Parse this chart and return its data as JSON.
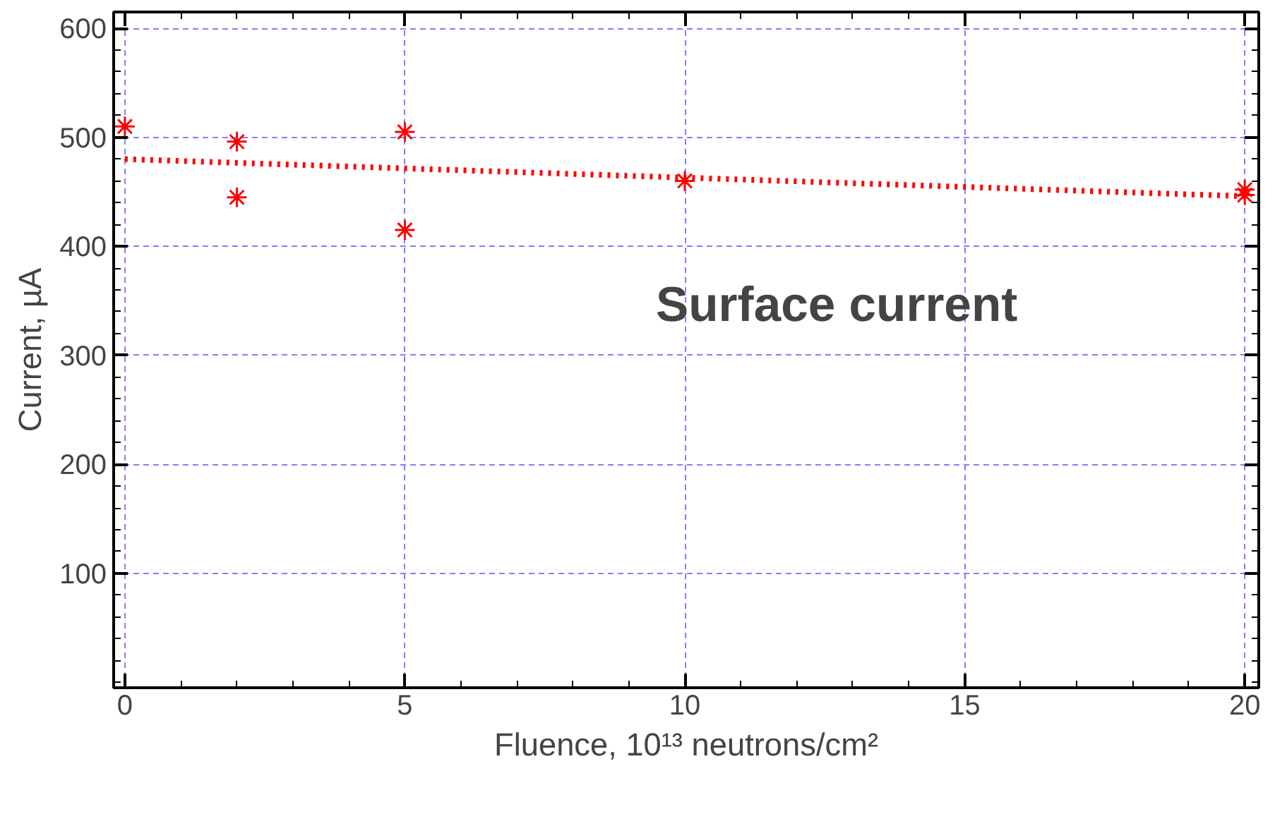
{
  "chart_data": {
    "type": "scatter",
    "xlabel": "Fluence, 10¹³ neutrons/cm²",
    "ylabel": "Current, µA",
    "annotations": [
      "Surface current"
    ],
    "xlim": [
      -0.2,
      20.25
    ],
    "ylim": [
      -5,
      615
    ],
    "xticks": [
      0,
      5,
      10,
      15,
      20
    ],
    "yticks": [
      100,
      200,
      300,
      400,
      500,
      600
    ],
    "grid": true,
    "marker": "cross",
    "series": [
      {
        "color": "#ff0000",
        "x": [
          0,
          2,
          2,
          5,
          5,
          10,
          20,
          20
        ],
        "values": [
          510,
          496,
          445,
          505,
          415,
          460,
          452,
          447
        ]
      },
      {
        "type": "line",
        "color": "#ff0000",
        "line_style": "dotted",
        "marker": "none",
        "x": [
          0,
          20
        ],
        "values": [
          480,
          446
        ]
      }
    ]
  }
}
